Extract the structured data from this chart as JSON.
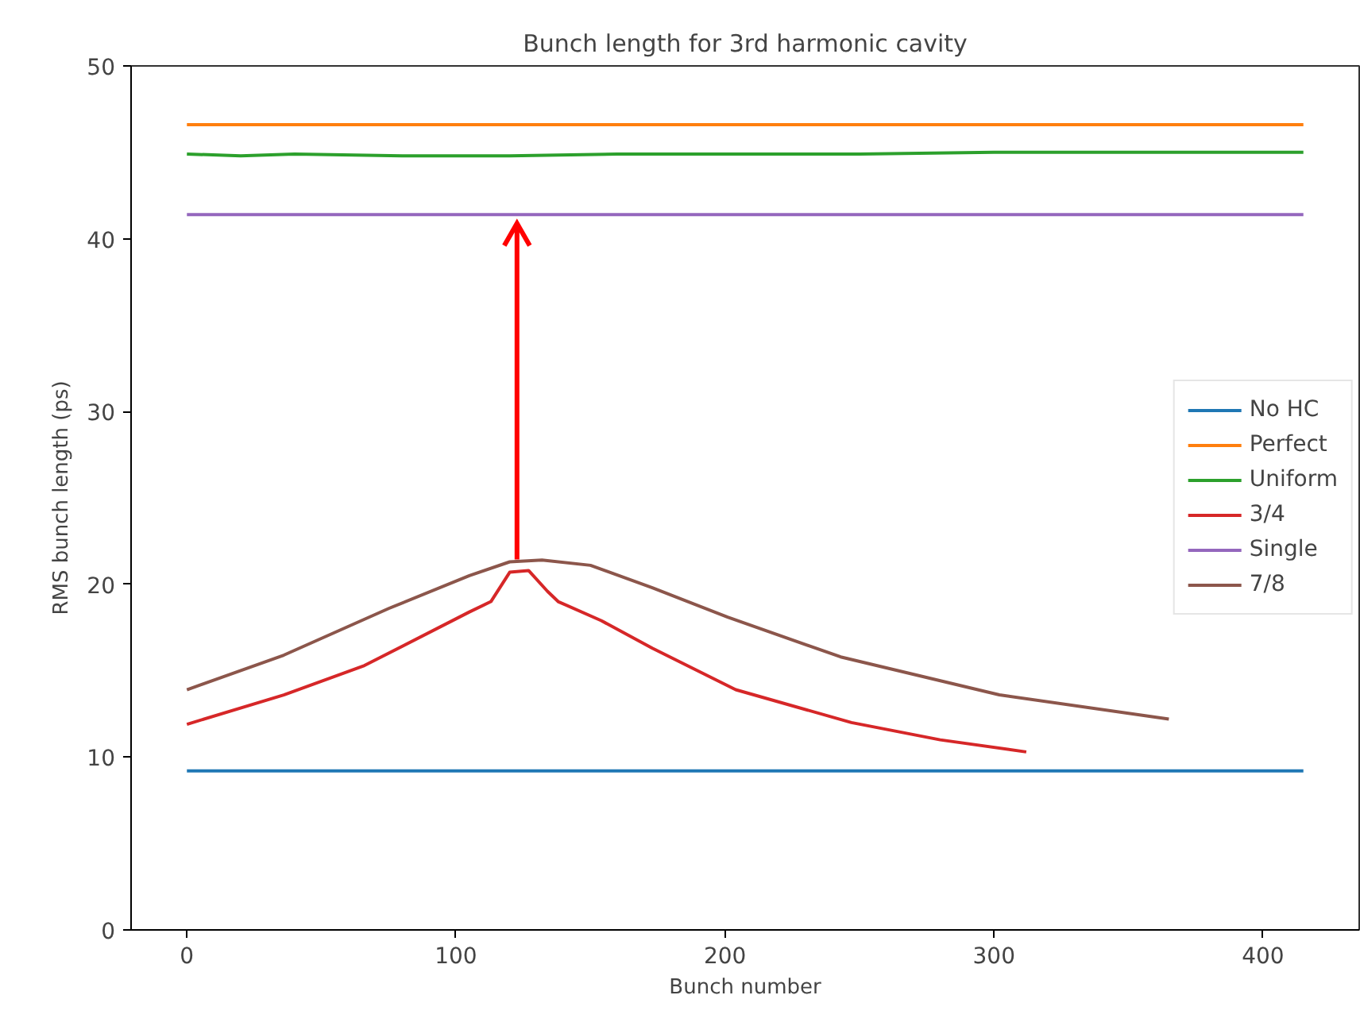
{
  "chart_data": {
    "type": "line",
    "title": "Bunch length for 3rd harmonic cavity",
    "xlabel": "Bunch number",
    "ylabel": "RMS bunch length (ps)",
    "xlim": [
      -20.75,
      435.75
    ],
    "ylim": [
      0,
      50
    ],
    "xticks": [
      0,
      100,
      200,
      300,
      400
    ],
    "yticks": [
      0,
      10,
      20,
      30,
      40,
      50
    ],
    "grid": false,
    "legend": "right",
    "line_style": "solid",
    "marker": "none",
    "series": [
      {
        "name": "No HC",
        "color": "#1f77b4",
        "x": [
          0,
          415
        ],
        "values": [
          9.2,
          9.2
        ]
      },
      {
        "name": "Perfect",
        "color": "#ff7f0e",
        "x": [
          0,
          415
        ],
        "values": [
          46.6,
          46.6
        ]
      },
      {
        "name": "Uniform",
        "color": "#2ca02c",
        "x": [
          0,
          20,
          40,
          80,
          120,
          160,
          200,
          250,
          300,
          350,
          380,
          400,
          415
        ],
        "values": [
          44.9,
          44.8,
          44.9,
          44.8,
          44.8,
          44.9,
          44.9,
          44.9,
          45.0,
          45.0,
          45.0,
          45.0,
          45.0
        ]
      },
      {
        "name": "3/4",
        "color": "#d62728",
        "x": [
          0,
          36,
          66,
          105,
          113,
          120,
          127,
          134,
          138,
          154,
          173,
          204,
          247,
          280,
          312
        ],
        "values": [
          11.9,
          13.6,
          15.3,
          18.4,
          19.0,
          20.7,
          20.8,
          19.6,
          19.0,
          17.9,
          16.3,
          13.9,
          12.0,
          11.0,
          10.3
        ]
      },
      {
        "name": "Single",
        "color": "#9467bd",
        "x": [
          0,
          415
        ],
        "values": [
          41.4,
          41.4
        ]
      },
      {
        "name": "7/8",
        "color": "#8c564b",
        "x": [
          0,
          36,
          75,
          105,
          120,
          132,
          150,
          173,
          201,
          243,
          302,
          365
        ],
        "values": [
          13.9,
          15.9,
          18.6,
          20.5,
          21.3,
          21.4,
          21.1,
          19.8,
          18.1,
          15.8,
          13.6,
          12.2
        ]
      }
    ]
  }
}
